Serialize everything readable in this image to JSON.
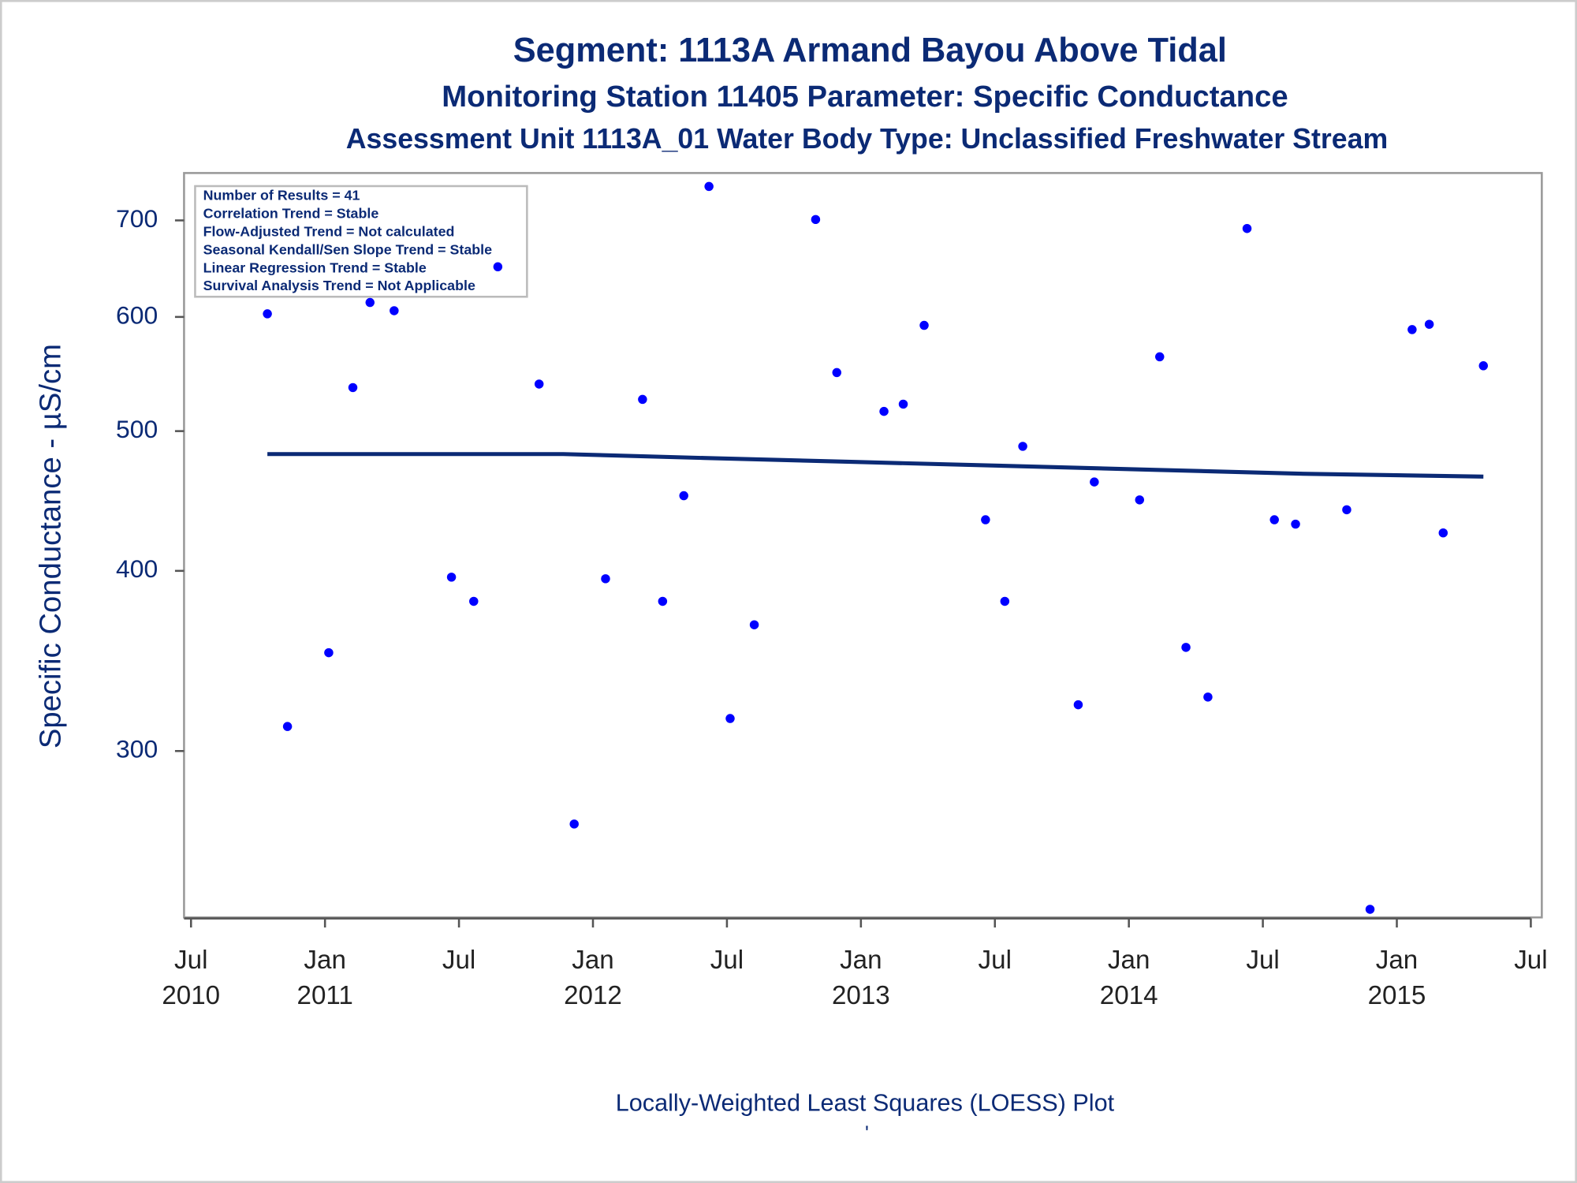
{
  "chart_data": {
    "type": "scatter",
    "title": "Segment: 1113A  Armand Bayou Above Tidal",
    "subtitle": "Monitoring Station 11405 Parameter: Specific Conductance",
    "subtitle2": "Assessment Unit 1113A_01   Water Body Type: Unclassified Freshwater Stream",
    "y_label": "Specific Conductance -  µS/cm",
    "footer": "Locally-Weighted Least Squares (LOESS) Plot",
    "footnote": "'",
    "annotations": [
      "Number of Results = 41",
      "Correlation Trend = Stable",
      "Flow-Adjusted Trend = Not calculated",
      "Seasonal Kendall/Sen Slope Trend = Stable",
      "Linear Regression Trend = Stable",
      "Survival Analysis Trend = Not Applicable"
    ],
    "yscale": "log",
    "xlim": [
      2010.474,
      2015.541
    ],
    "ylim": [
      230,
      755
    ],
    "yticks": [
      300,
      400,
      500,
      600,
      700
    ],
    "xticks": [
      {
        "value": 2010.5,
        "label": [
          "Jul",
          "2010"
        ]
      },
      {
        "value": 2011.0,
        "label": [
          "Jan",
          "2011"
        ]
      },
      {
        "value": 2011.5,
        "label": [
          "Jul",
          ""
        ]
      },
      {
        "value": 2012.0,
        "label": [
          "Jan",
          "2012"
        ]
      },
      {
        "value": 2012.5,
        "label": [
          "Jul",
          ""
        ]
      },
      {
        "value": 2013.0,
        "label": [
          "Jan",
          "2013"
        ]
      },
      {
        "value": 2013.5,
        "label": [
          "Jul",
          ""
        ]
      },
      {
        "value": 2014.0,
        "label": [
          "Jan",
          "2014"
        ]
      },
      {
        "value": 2014.5,
        "label": [
          "Jul",
          ""
        ]
      },
      {
        "value": 2015.0,
        "label": [
          "Jan",
          "2015"
        ]
      },
      {
        "value": 2015.5,
        "label": [
          "Jul",
          ""
        ]
      }
    ],
    "series": [
      {
        "kind": "scatter",
        "color": "#0000ff",
        "x": [
          2010.785,
          2010.86,
          2011.014,
          2011.104,
          2011.168,
          2011.258,
          2011.472,
          2011.555,
          2011.645,
          2011.799,
          2011.93,
          2012.047,
          2012.185,
          2012.26,
          2012.339,
          2012.433,
          2012.512,
          2012.602,
          2012.831,
          2012.91,
          2013.086,
          2013.158,
          2013.236,
          2013.465,
          2013.537,
          2013.604,
          2013.811,
          2013.871,
          2014.04,
          2014.115,
          2014.213,
          2014.295,
          2014.441,
          2014.543,
          2014.622,
          2014.813,
          2014.9,
          2015.057,
          2015.121,
          2015.173,
          2015.323
        ],
        "values": [
          603,
          312,
          351,
          536,
          614,
          606,
          396,
          381,
          650,
          539,
          267,
          395,
          526,
          381,
          451,
          739,
          316,
          367,
          701,
          549,
          516,
          522,
          592,
          434,
          381,
          488,
          323,
          461,
          448,
          563,
          354,
          327,
          691,
          434,
          431,
          441,
          233,
          588,
          593,
          425,
          555
        ]
      },
      {
        "kind": "line",
        "color": "#0b2a75",
        "x": [
          2010.785,
          2011.889,
          2012.414,
          2012.977,
          2013.54,
          2014.104,
          2014.667,
          2015.323
        ],
        "values": [
          482,
          482,
          479,
          476,
          473,
          470,
          467,
          465
        ]
      }
    ]
  }
}
